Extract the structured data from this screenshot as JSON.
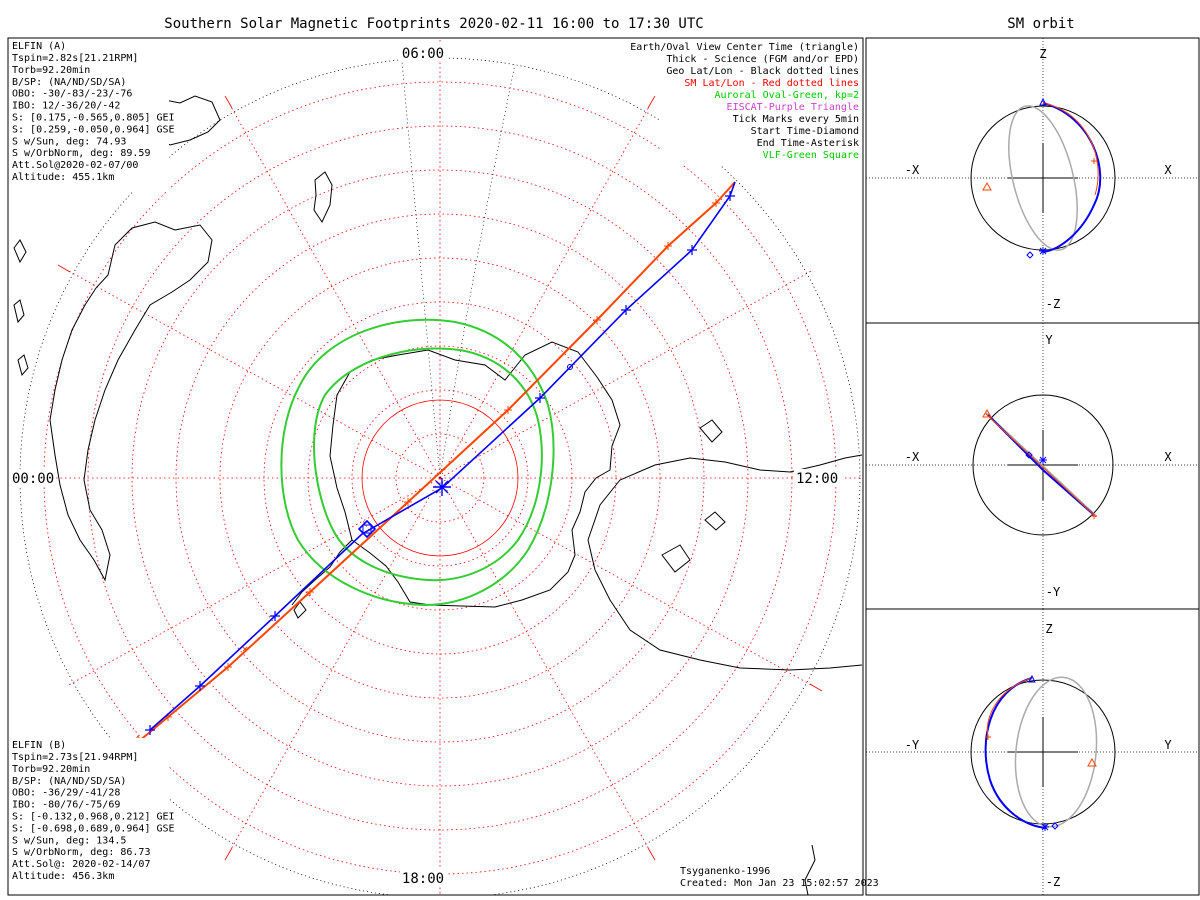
{
  "main": {
    "title": "Southern Solar Magnetic Footprints 2020-02-11 16:00 to 17:30 UTC",
    "clock_labels": {
      "top": "06:00",
      "bottom": "18:00",
      "left": "00:00",
      "right": "12:00"
    }
  },
  "elfin_a": {
    "name": "ELFIN (A)",
    "color": "#0000ff",
    "lines": [
      "Tspin=2.82s[21.21RPM]",
      "Torb=92.20min",
      "B/SP: (NA/ND/SD/SA)",
      "OBO: -30/-83/-23/-76",
      "IBO: 12/-36/20/-42",
      "S: [0.175,-0.565,0.805] GEI",
      "S: [0.259,-0.050,0.964] GSE",
      "S w/Sun, deg: 74.93",
      "S w/OrbNorm, deg: 89.59",
      "Att.Sol@2020-02-07/00",
      "Altitude: 455.1km"
    ]
  },
  "elfin_b": {
    "name": "ELFIN (B)",
    "color": "#ff4500",
    "lines": [
      "Tspin=2.73s[21.94RPM]",
      "Torb=92.20min",
      "B/SP: (NA/ND/SD/SA)",
      "OBO: -36/29/-41/28",
      "IBO: -80/76/-75/69",
      "S: [-0.132,0.968,0.212] GEI",
      "S: [-0.698,0.689,0.964] GSE",
      "S w/Sun, deg: 134.5",
      "S w/OrbNorm, deg: 86.73",
      "Att.Sol@: 2020-02-14/07",
      "Altitude: 456.3km"
    ]
  },
  "legend": [
    {
      "text": "Earth/Oval View Center Time (triangle)",
      "color": "#000000"
    },
    {
      "text": "Thick - Science (FGM and/or EPD)",
      "color": "#000000"
    },
    {
      "text": "Geo Lat/Lon - Black dotted lines",
      "color": "#000000"
    },
    {
      "text": "SM Lat/Lon - Red dotted lines",
      "color": "#ff0000"
    },
    {
      "text": "Auroral Oval-Green, kp=2",
      "color": "#00cc00"
    },
    {
      "text": "EISCAT-Purple Triangle",
      "color": "#cc44cc"
    },
    {
      "text": "Tick Marks every 5min",
      "color": "#000000"
    },
    {
      "text": "Start Time-Diamond",
      "color": "#000000"
    },
    {
      "text": "End Time-Asterisk",
      "color": "#000000"
    },
    {
      "text": "VLF-Green Square",
      "color": "#00cc00"
    }
  ],
  "footer": {
    "model": "Tsyganenko-1996",
    "created": "Created: Mon Jan 23 15:02:57 2023"
  },
  "orbit_panel": {
    "title": "SM orbit",
    "panels": [
      {
        "top": "Z",
        "bottom": "-Z",
        "left": "-X",
        "right": "X"
      },
      {
        "top": "Y",
        "bottom": "-Y",
        "left": "-X",
        "right": "X"
      },
      {
        "top": "Z",
        "bottom": "-Z",
        "left": "-Y",
        "right": "Y"
      }
    ]
  },
  "colors": {
    "elfin_a_track": "#0000ff",
    "elfin_b_track": "#ff4500",
    "sm_grid": "#ff0000",
    "geo_grid": "#000000",
    "auroral_oval": "#33cc33",
    "other_orbit": "#aaaaaa"
  }
}
